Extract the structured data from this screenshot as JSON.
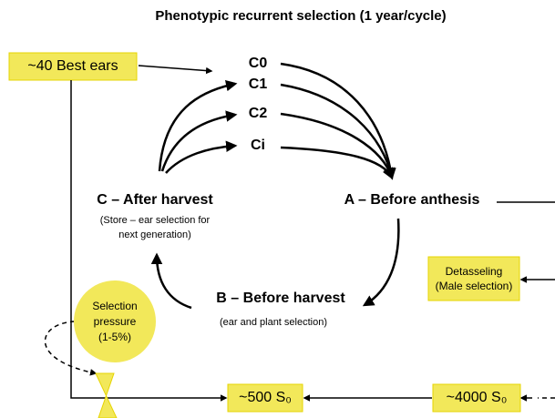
{
  "title": "Phenotypic recurrent selection (1 year/cycle)",
  "best_ears": "~40 Best ears",
  "cycles": [
    "C0",
    "C1",
    "C2",
    "Ci"
  ],
  "stage_c": {
    "label": "C – After harvest",
    "note_1": "(Store – ear selection for",
    "note_2": "next generation)"
  },
  "stage_a": {
    "label": "A – Before anthesis"
  },
  "stage_b": {
    "label": "B – Before harvest",
    "note": "(ear and plant selection)"
  },
  "selection_pressure": [
    "Selection",
    "pressure",
    "(1-5%)"
  ],
  "detasseling": [
    "Detasseling",
    "(Male selection)"
  ],
  "s0_500": "~500 S₀",
  "s0_4000": "~4000 S₀"
}
